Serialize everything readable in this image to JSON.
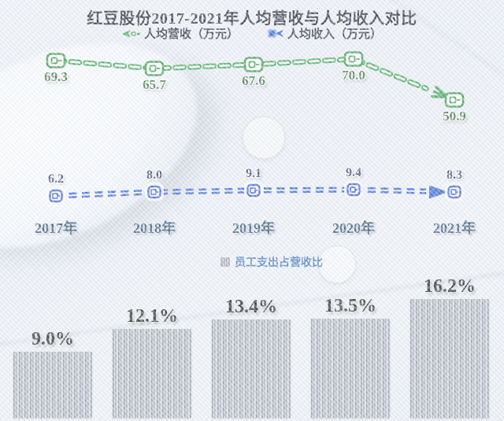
{
  "title": "红豆股份2017-2021年人均营收与人均收入对比",
  "legend": {
    "revenue_label": "人均营收（万元）",
    "income_label": "人均收入（万元）"
  },
  "bar_section": {
    "legend_label": "员工支出占营收比"
  },
  "colors": {
    "green_line": "#2f9e45",
    "green_marker_border": "#2e8f3e",
    "green_label_text": "#2d5f2e",
    "blue_line": "#1f55d4",
    "blue_marker_border": "#2b50c8",
    "blue_label_text": "#1c2b4e",
    "year_text": "#24415f",
    "bar_legend_text": "#2f6db5",
    "bar_stripe_dark": "#868c98",
    "bar_stripe_light": "#ced2da",
    "percent_text": "#0e0e10"
  },
  "chart_data": [
    {
      "type": "line",
      "title": "红豆股份2017-2021年人均营收与人均收入对比",
      "categories": [
        "2017年",
        "2018年",
        "2019年",
        "2020年",
        "2021年"
      ],
      "series": [
        {
          "name": "人均营收（万元）",
          "color": "#2f9e45",
          "style": "hollow-dashed-with-arrow",
          "values": [
            69.3,
            65.7,
            67.6,
            70.0,
            50.9
          ],
          "labels": [
            "69.3",
            "65.7",
            "67.6",
            "70.0",
            "50.9"
          ]
        },
        {
          "name": "人均收入（万元）",
          "color": "#1f55d4",
          "style": "double-dashed-with-arrow",
          "values": [
            6.2,
            8.0,
            9.1,
            9.4,
            8.3
          ],
          "labels": [
            "6.2",
            "8.0",
            "9.1",
            "9.4",
            "8.3"
          ]
        }
      ],
      "legend_position": "top",
      "grid": false,
      "axis_lines": false
    },
    {
      "type": "bar",
      "title": "员工支出占营收比",
      "categories": [
        "2017年",
        "2018年",
        "2019年",
        "2020年",
        "2021年"
      ],
      "values": [
        9.0,
        12.1,
        13.4,
        13.5,
        16.2
      ],
      "labels": [
        "9.0%",
        "12.1%",
        "13.4%",
        "13.5%",
        "16.2%"
      ],
      "unit": "%",
      "ylim": [
        0,
        18
      ],
      "grid": false,
      "legend_position": "top"
    }
  ]
}
